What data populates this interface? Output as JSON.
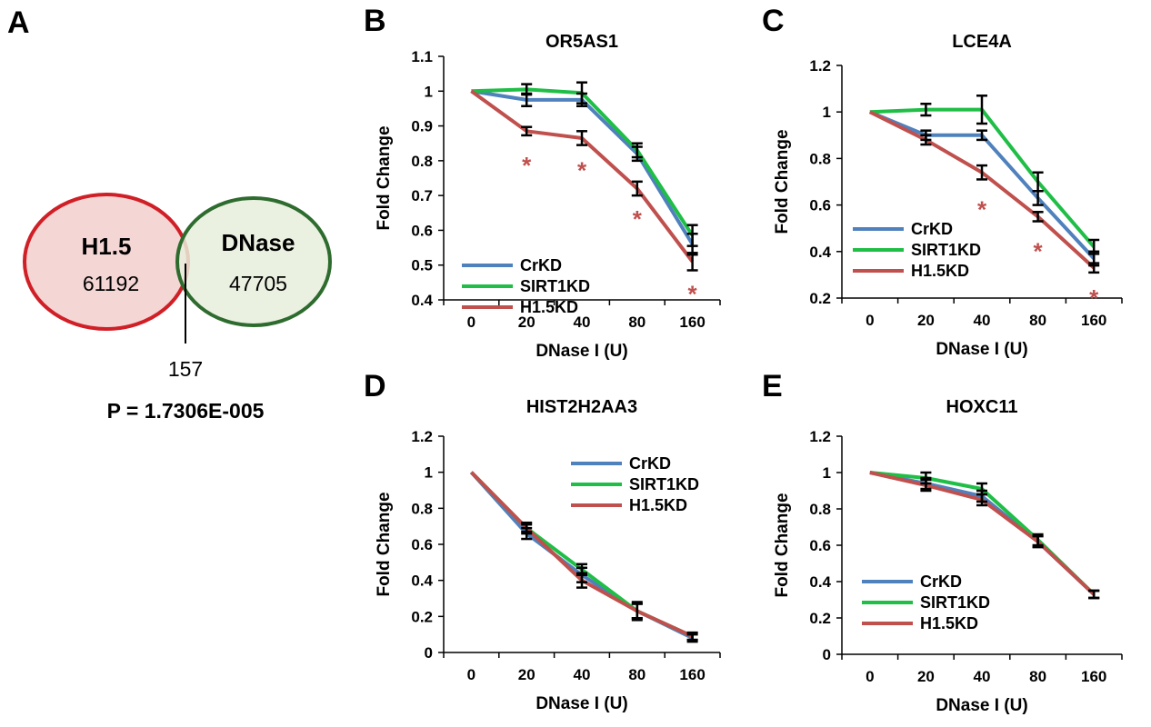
{
  "venn": {
    "panel_label": "A",
    "left": {
      "name": "H1.5",
      "count": "61192",
      "color": "#d01f26",
      "fill": "#f4d6d4"
    },
    "right": {
      "name": "DNase",
      "count": "47705",
      "color": "#2e6b2e",
      "fill": "#e7efdc"
    },
    "overlap": "157",
    "pvalue": "P = 1.7306E-005"
  },
  "series_colors": {
    "CrKD": "#4f81bd",
    "SIRT1KD": "#1fbe46",
    "H1.5KD": "#c0504d"
  },
  "chart_data": [
    {
      "panel": "B",
      "type": "line",
      "title": "OR5AS1",
      "xlabel": "DNase I (U)",
      "ylabel": "Fold Change",
      "categories": [
        "0",
        "20",
        "40",
        "80",
        "160"
      ],
      "ylim": [
        0.4,
        1.1
      ],
      "yticks": [
        "0.4",
        "0.5",
        "0.6",
        "0.7",
        "0.8",
        "0.9",
        "1",
        "1.1"
      ],
      "legend": "bottom-left",
      "series": [
        {
          "name": "CrKD",
          "values": [
            1.0,
            0.975,
            0.975,
            0.82,
            0.56
          ],
          "errors": [
            0,
            0.018,
            0.018,
            0.02,
            0.03
          ]
        },
        {
          "name": "SIRT1KD",
          "values": [
            1.0,
            1.005,
            0.995,
            0.83,
            0.585
          ],
          "errors": [
            0,
            0.015,
            0.03,
            0.02,
            0.03
          ]
        },
        {
          "name": "H1.5KD",
          "values": [
            1.0,
            0.885,
            0.865,
            0.72,
            0.51
          ],
          "errors": [
            0,
            0.012,
            0.02,
            0.02,
            0.025
          ]
        }
      ],
      "significance": [
        {
          "index": 1,
          "value": 0.8,
          "label": "*"
        },
        {
          "index": 2,
          "value": 0.785,
          "label": "*"
        },
        {
          "index": 3,
          "value": 0.645,
          "label": "*"
        },
        {
          "index": 4,
          "value": 0.43,
          "label": "*"
        }
      ]
    },
    {
      "panel": "C",
      "type": "line",
      "title": "LCE4A",
      "xlabel": "DNase I (U)",
      "ylabel": "Fold Change",
      "categories": [
        "0",
        "20",
        "40",
        "80",
        "160"
      ],
      "ylim": [
        0.2,
        1.2
      ],
      "yticks": [
        "0.2",
        "0.4",
        "0.6",
        "0.8",
        "1",
        "1.2"
      ],
      "legend": "bottom-left",
      "series": [
        {
          "name": "CrKD",
          "values": [
            1.0,
            0.9,
            0.9,
            0.63,
            0.37
          ],
          "errors": [
            0,
            0.02,
            0.02,
            0.03,
            0.03
          ]
        },
        {
          "name": "SIRT1KD",
          "values": [
            1.0,
            1.01,
            1.01,
            0.7,
            0.42
          ],
          "errors": [
            0,
            0.025,
            0.06,
            0.04,
            0.03
          ]
        },
        {
          "name": "H1.5KD",
          "values": [
            1.0,
            0.88,
            0.74,
            0.55,
            0.33
          ],
          "errors": [
            0,
            0.02,
            0.03,
            0.02,
            0.02
          ]
        }
      ],
      "significance": [
        {
          "index": 2,
          "value": 0.6,
          "label": "*"
        },
        {
          "index": 3,
          "value": 0.42,
          "label": "*"
        },
        {
          "index": 4,
          "value": 0.22,
          "label": "*"
        }
      ]
    },
    {
      "panel": "D",
      "type": "line",
      "title": "HIST2H2AA3",
      "xlabel": "DNase I (U)",
      "ylabel": "Fold Change",
      "categories": [
        "0",
        "20",
        "40",
        "80",
        "160"
      ],
      "ylim": [
        0,
        1.2
      ],
      "yticks": [
        "0",
        "0.2",
        "0.4",
        "0.6",
        "0.8",
        "1",
        "1.2"
      ],
      "legend": "top-right",
      "series": [
        {
          "name": "CrKD",
          "values": [
            1.0,
            0.66,
            0.43,
            0.23,
            0.08
          ],
          "errors": [
            0,
            0.03,
            0.04,
            0.05,
            0.02
          ]
        },
        {
          "name": "SIRT1KD",
          "values": [
            1.0,
            0.69,
            0.46,
            0.23,
            0.09
          ],
          "errors": [
            0,
            0.03,
            0.03,
            0.04,
            0.02
          ]
        },
        {
          "name": "H1.5KD",
          "values": [
            1.0,
            0.69,
            0.4,
            0.23,
            0.09
          ],
          "errors": [
            0,
            0.02,
            0.04,
            0.04,
            0.02
          ]
        }
      ]
    },
    {
      "panel": "E",
      "type": "line",
      "title": "HOXC11",
      "xlabel": "DNase I (U)",
      "ylabel": "Fold Change",
      "categories": [
        "0",
        "20",
        "40",
        "80",
        "160"
      ],
      "ylim": [
        0,
        1.2
      ],
      "yticks": [
        "0",
        "0.2",
        "0.4",
        "0.6",
        "0.8",
        "1",
        "1.2"
      ],
      "legend": "bottom-left",
      "series": [
        {
          "name": "CrKD",
          "values": [
            1.0,
            0.94,
            0.87,
            0.62,
            0.33
          ],
          "errors": [
            0,
            0.03,
            0.03,
            0.03,
            0.02
          ]
        },
        {
          "name": "SIRT1KD",
          "values": [
            1.0,
            0.97,
            0.91,
            0.63,
            0.33
          ],
          "errors": [
            0,
            0.03,
            0.03,
            0.03,
            0.02
          ]
        },
        {
          "name": "H1.5KD",
          "values": [
            1.0,
            0.93,
            0.85,
            0.62,
            0.33
          ],
          "errors": [
            0,
            0.03,
            0.03,
            0.03,
            0.02
          ]
        }
      ]
    }
  ]
}
